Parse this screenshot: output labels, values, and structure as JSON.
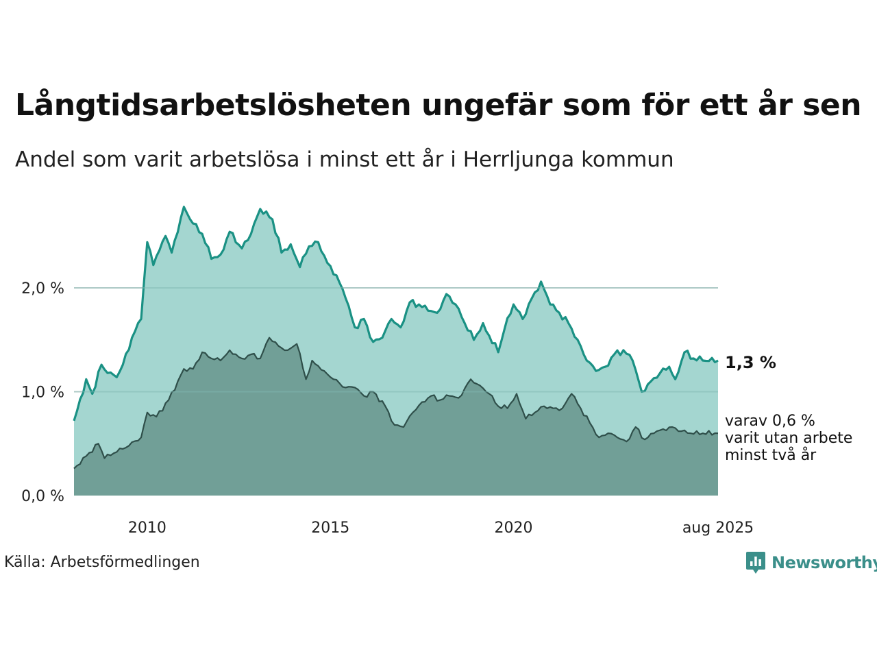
{
  "title": "Långtidsarbetslösheten ungefär som för ett år sen",
  "subtitle": "Andel som varit arbetslösa i minst ett år i Herrljunga kommun",
  "source": "Källa: Arbetsförmedlingen",
  "brand": {
    "name": "Newsworthy",
    "logo_icon": "newsworthy-bar-chart-icon"
  },
  "colors": {
    "total_line": "#1a9184",
    "total_fill": "#a4d6d0",
    "long_line": "#2f4f4a",
    "long_fill": "#719f97",
    "grid": "#d8d8d8",
    "brand": "#3b8f8a"
  },
  "annotations": {
    "total_label": "1,3 %",
    "long_label_lines": [
      "varav 0,6 %",
      "varit utan arbete",
      "minst två år"
    ]
  },
  "chart_data": {
    "type": "area",
    "x_start": "2008-01",
    "x_end": "2025-08",
    "frequency": "monthly",
    "xlim": [
      "2008-01",
      "2025-08"
    ],
    "ylim": [
      0,
      2.8
    ],
    "y_ticks": [
      {
        "value": 0,
        "label": "0,0 %"
      },
      {
        "value": 1,
        "label": "1,0 %"
      },
      {
        "value": 2,
        "label": "2,0 %"
      }
    ],
    "x_ticks": [
      {
        "date": "2010-01",
        "label": "2010"
      },
      {
        "date": "2015-01",
        "label": "2015"
      },
      {
        "date": "2020-01",
        "label": "2020"
      },
      {
        "date": "2025-08",
        "label": "aug 2025"
      }
    ],
    "grid": true,
    "series": [
      {
        "key": "total",
        "keypoints": [
          [
            "2008-01",
            0.72
          ],
          [
            "2008-05",
            1.12
          ],
          [
            "2008-07",
            0.98
          ],
          [
            "2008-10",
            1.26
          ],
          [
            "2008-12",
            1.18
          ],
          [
            "2009-03",
            1.14
          ],
          [
            "2009-05",
            1.26
          ],
          [
            "2009-08",
            1.52
          ],
          [
            "2009-11",
            1.7
          ],
          [
            "2010-01",
            2.44
          ],
          [
            "2010-03",
            2.22
          ],
          [
            "2010-07",
            2.5
          ],
          [
            "2010-09",
            2.34
          ],
          [
            "2011-01",
            2.78
          ],
          [
            "2011-04",
            2.62
          ],
          [
            "2011-07",
            2.52
          ],
          [
            "2011-10",
            2.28
          ],
          [
            "2012-01",
            2.32
          ],
          [
            "2012-04",
            2.54
          ],
          [
            "2012-08",
            2.38
          ],
          [
            "2012-11",
            2.52
          ],
          [
            "2013-02",
            2.76
          ],
          [
            "2013-06",
            2.66
          ],
          [
            "2013-09",
            2.34
          ],
          [
            "2013-12",
            2.42
          ],
          [
            "2014-03",
            2.2
          ],
          [
            "2014-06",
            2.4
          ],
          [
            "2014-09",
            2.44
          ],
          [
            "2014-12",
            2.24
          ],
          [
            "2015-03",
            2.12
          ],
          [
            "2015-06",
            1.9
          ],
          [
            "2015-09",
            1.62
          ],
          [
            "2015-12",
            1.7
          ],
          [
            "2016-03",
            1.48
          ],
          [
            "2016-06",
            1.52
          ],
          [
            "2016-09",
            1.7
          ],
          [
            "2016-12",
            1.62
          ],
          [
            "2017-03",
            1.86
          ],
          [
            "2017-06",
            1.84
          ],
          [
            "2017-09",
            1.78
          ],
          [
            "2017-12",
            1.76
          ],
          [
            "2018-03",
            1.94
          ],
          [
            "2018-06",
            1.84
          ],
          [
            "2018-09",
            1.66
          ],
          [
            "2018-12",
            1.5
          ],
          [
            "2019-03",
            1.66
          ],
          [
            "2019-05",
            1.54
          ],
          [
            "2019-08",
            1.38
          ],
          [
            "2019-10",
            1.6
          ],
          [
            "2020-01",
            1.84
          ],
          [
            "2020-04",
            1.7
          ],
          [
            "2020-07",
            1.9
          ],
          [
            "2020-10",
            2.06
          ],
          [
            "2021-01",
            1.84
          ],
          [
            "2021-04",
            1.76
          ],
          [
            "2021-07",
            1.66
          ],
          [
            "2021-10",
            1.5
          ],
          [
            "2022-01",
            1.3
          ],
          [
            "2022-04",
            1.2
          ],
          [
            "2022-07",
            1.24
          ],
          [
            "2022-10",
            1.36
          ],
          [
            "2023-01",
            1.4
          ],
          [
            "2023-04",
            1.3
          ],
          [
            "2023-07",
            1.0
          ],
          [
            "2023-10",
            1.1
          ],
          [
            "2024-01",
            1.18
          ],
          [
            "2024-04",
            1.24
          ],
          [
            "2024-06",
            1.12
          ],
          [
            "2024-09",
            1.38
          ],
          [
            "2024-12",
            1.32
          ],
          [
            "2025-03",
            1.3
          ],
          [
            "2025-08",
            1.3
          ]
        ]
      },
      {
        "key": "long_term",
        "keypoints": [
          [
            "2008-01",
            0.26
          ],
          [
            "2008-05",
            0.38
          ],
          [
            "2008-09",
            0.5
          ],
          [
            "2008-11",
            0.36
          ],
          [
            "2009-03",
            0.42
          ],
          [
            "2009-07",
            0.48
          ],
          [
            "2009-11",
            0.56
          ],
          [
            "2010-01",
            0.8
          ],
          [
            "2010-04",
            0.76
          ],
          [
            "2010-08",
            0.92
          ],
          [
            "2010-11",
            1.1
          ],
          [
            "2011-01",
            1.22
          ],
          [
            "2011-04",
            1.22
          ],
          [
            "2011-07",
            1.38
          ],
          [
            "2011-10",
            1.32
          ],
          [
            "2012-01",
            1.3
          ],
          [
            "2012-04",
            1.4
          ],
          [
            "2012-08",
            1.32
          ],
          [
            "2012-11",
            1.36
          ],
          [
            "2013-02",
            1.32
          ],
          [
            "2013-05",
            1.52
          ],
          [
            "2013-08",
            1.44
          ],
          [
            "2013-11",
            1.4
          ],
          [
            "2014-02",
            1.46
          ],
          [
            "2014-05",
            1.12
          ],
          [
            "2014-07",
            1.3
          ],
          [
            "2014-11",
            1.2
          ],
          [
            "2015-02",
            1.12
          ],
          [
            "2015-06",
            1.04
          ],
          [
            "2015-09",
            1.04
          ],
          [
            "2015-12",
            0.96
          ],
          [
            "2016-03",
            1.0
          ],
          [
            "2016-07",
            0.86
          ],
          [
            "2016-10",
            0.68
          ],
          [
            "2017-01",
            0.66
          ],
          [
            "2017-04",
            0.8
          ],
          [
            "2017-07",
            0.9
          ],
          [
            "2017-10",
            0.96
          ],
          [
            "2018-01",
            0.92
          ],
          [
            "2018-04",
            0.96
          ],
          [
            "2018-07",
            0.94
          ],
          [
            "2018-11",
            1.12
          ],
          [
            "2019-02",
            1.06
          ],
          [
            "2019-05",
            0.98
          ],
          [
            "2019-08",
            0.86
          ],
          [
            "2019-11",
            0.84
          ],
          [
            "2020-02",
            0.98
          ],
          [
            "2020-05",
            0.74
          ],
          [
            "2020-08",
            0.8
          ],
          [
            "2020-11",
            0.86
          ],
          [
            "2021-02",
            0.84
          ],
          [
            "2021-05",
            0.84
          ],
          [
            "2021-08",
            0.98
          ],
          [
            "2021-11",
            0.84
          ],
          [
            "2022-02",
            0.7
          ],
          [
            "2022-05",
            0.56
          ],
          [
            "2022-08",
            0.6
          ],
          [
            "2022-11",
            0.56
          ],
          [
            "2023-02",
            0.52
          ],
          [
            "2023-05",
            0.66
          ],
          [
            "2023-08",
            0.54
          ],
          [
            "2023-11",
            0.6
          ],
          [
            "2024-02",
            0.64
          ],
          [
            "2024-05",
            0.66
          ],
          [
            "2024-08",
            0.62
          ],
          [
            "2024-11",
            0.6
          ],
          [
            "2025-03",
            0.6
          ],
          [
            "2025-08",
            0.6
          ]
        ]
      }
    ]
  }
}
